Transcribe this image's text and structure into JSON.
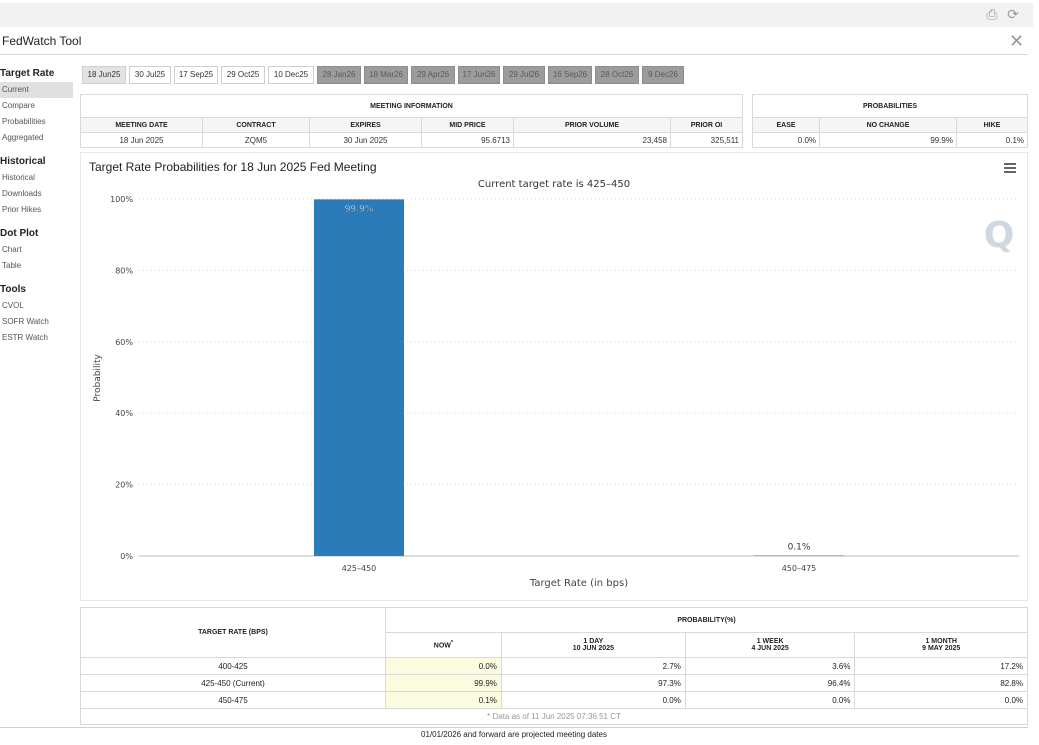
{
  "app": {
    "title": "FedWatch Tool",
    "close_icon": "✕",
    "toolbar_icons": [
      "print-icon",
      "refresh-icon"
    ]
  },
  "sidebar": {
    "sections": [
      {
        "heading": "Target Rate",
        "items": [
          "Current",
          "Compare",
          "Probabilities",
          "Aggregated"
        ]
      },
      {
        "heading": "Historical",
        "items": [
          "Historical",
          "Downloads",
          "Prior Hikes"
        ]
      },
      {
        "heading": "Dot Plot",
        "items": [
          "Chart",
          "Table"
        ]
      },
      {
        "heading": "Tools",
        "items": [
          "CVOL",
          "SOFR Watch",
          "ESTR Watch"
        ]
      }
    ],
    "active_item": "Current"
  },
  "date_tabs": [
    {
      "label": "18 Jun25",
      "state": "selected"
    },
    {
      "label": "30 Jul25",
      "state": "normal"
    },
    {
      "label": "17 Sep25",
      "state": "normal"
    },
    {
      "label": "29 Oct25",
      "state": "normal"
    },
    {
      "label": "10 Dec25",
      "state": "normal"
    },
    {
      "label": "28 Jan26",
      "state": "disabled"
    },
    {
      "label": "18 Mar26",
      "state": "disabled"
    },
    {
      "label": "29 Apr26",
      "state": "disabled"
    },
    {
      "label": "17 Jun26",
      "state": "disabled"
    },
    {
      "label": "29 Jul26",
      "state": "disabled"
    },
    {
      "label": "16 Sep26",
      "state": "disabled"
    },
    {
      "label": "28 Oct26",
      "state": "disabled"
    },
    {
      "label": "9 Dec26",
      "state": "disabled"
    }
  ],
  "meeting_info": {
    "title": "MEETING INFORMATION",
    "headers": [
      "MEETING DATE",
      "CONTRACT",
      "EXPIRES",
      "MID PRICE",
      "PRIOR VOLUME",
      "PRIOR OI"
    ],
    "row": [
      "18 Jun 2025",
      "ZQM5",
      "30 Jun 2025",
      "95.6713",
      "23,458",
      "325,511"
    ]
  },
  "probabilities": {
    "title": "PROBABILITIES",
    "headers": [
      "EASE",
      "NO CHANGE",
      "HIKE"
    ],
    "row": [
      "0.0%",
      "99.9%",
      "0.1%"
    ]
  },
  "chart": {
    "menu_icon": "hamburger-menu-icon",
    "watermark": "Q",
    "colors": {
      "bar": "#2b7bb9",
      "grid": "#d8d8d8"
    }
  },
  "chart_data": {
    "type": "bar",
    "title": "Target Rate Probabilities for 18 Jun 2025 Fed Meeting",
    "subtitle": "Current target rate is 425–450",
    "xlabel": "Target Rate (in bps)",
    "ylabel": "Probability",
    "categories": [
      "425–450",
      "450–475"
    ],
    "values": [
      99.9,
      0.1
    ],
    "data_labels": [
      "99.9%",
      "0.1%"
    ],
    "ylim": [
      0,
      100
    ],
    "yticks": [
      0,
      20,
      40,
      60,
      80,
      100
    ],
    "ytick_labels": [
      "0%",
      "20%",
      "40%",
      "60%",
      "80%",
      "100%"
    ],
    "grid": true
  },
  "bottom_table": {
    "rate_header": "TARGET RATE (BPS)",
    "prob_header": "PROBABILITY(%)",
    "columns": [
      {
        "line1": "NOW",
        "line2": "",
        "marker": "*"
      },
      {
        "line1": "1 DAY",
        "line2": "10 JUN 2025",
        "marker": ""
      },
      {
        "line1": "1 WEEK",
        "line2": "4 JUN 2025",
        "marker": ""
      },
      {
        "line1": "1 MONTH",
        "line2": "9 MAY 2025",
        "marker": ""
      }
    ],
    "rows": [
      {
        "rate": "400-425",
        "values": [
          "0.0%",
          "2.7%",
          "3.6%",
          "17.2%"
        ]
      },
      {
        "rate": "425-450 (Current)",
        "values": [
          "99.9%",
          "97.3%",
          "96.4%",
          "82.8%"
        ]
      },
      {
        "rate": "450-475",
        "values": [
          "0.1%",
          "0.0%",
          "0.0%",
          "0.0%"
        ]
      }
    ],
    "footnote": "* Data as of 11 Jun 2025 07:36:51 CT"
  },
  "footer": "01/01/2026 and forward are projected meeting dates"
}
